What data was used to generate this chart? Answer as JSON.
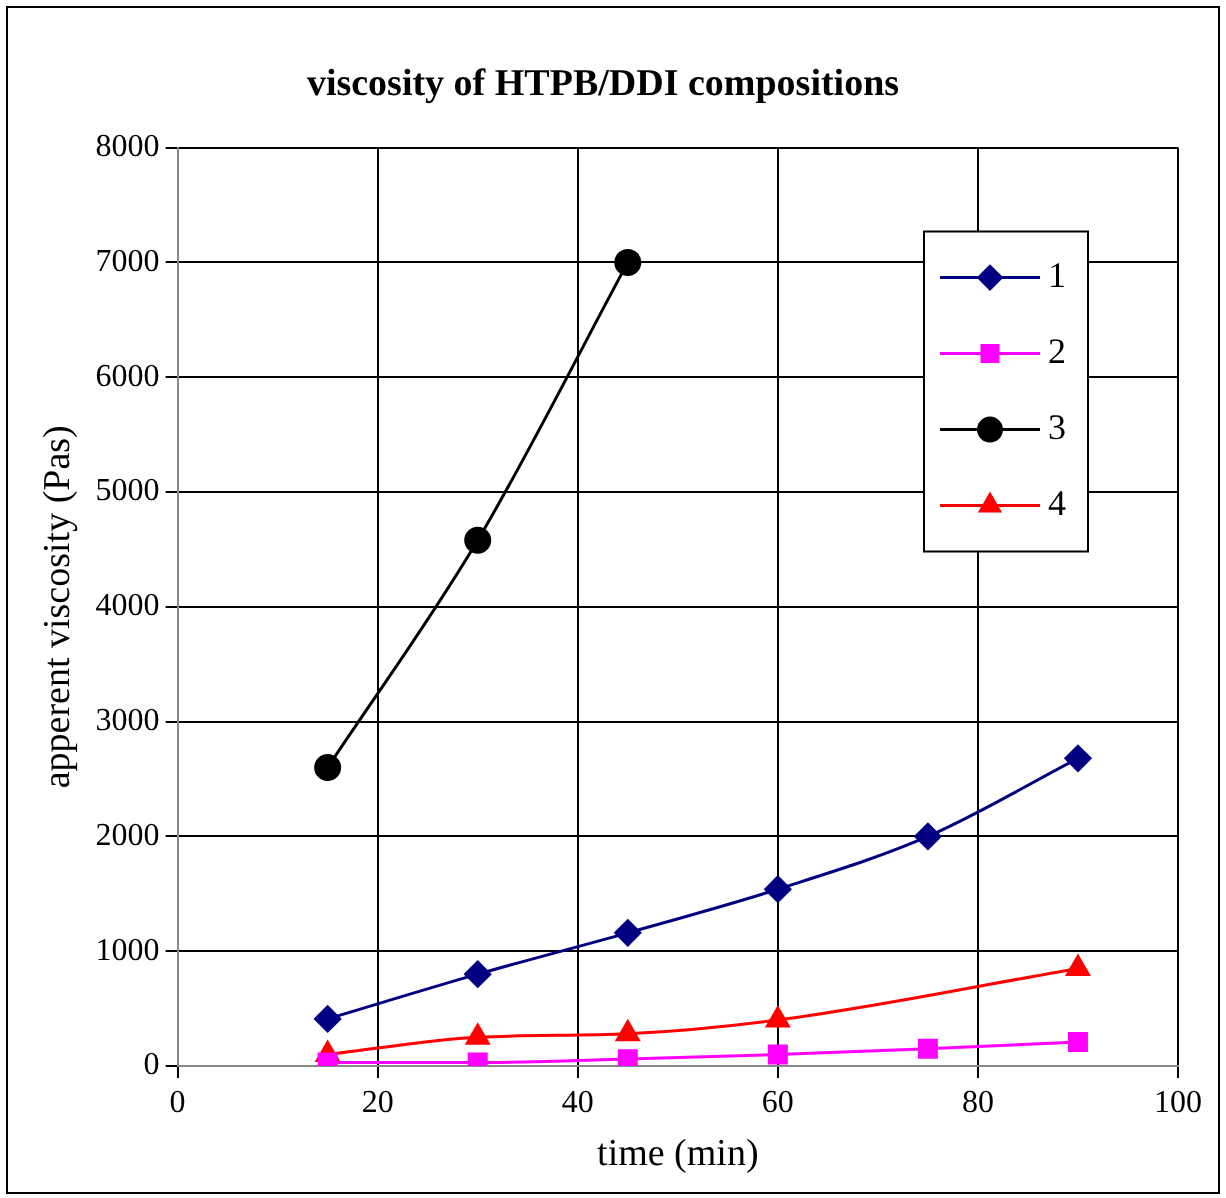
{
  "chart_data": {
    "type": "line",
    "title": "viscosity of HTPB/DDI compositions",
    "xlabel": "time (min)",
    "ylabel": "apperent viscosity (Pas)",
    "x": [
      15,
      30,
      45,
      60,
      75,
      90
    ],
    "series": [
      {
        "name": "1",
        "color": "#000080",
        "marker": "diamond",
        "values": [
          410,
          800,
          1160,
          1540,
          2000,
          2680
        ]
      },
      {
        "name": "2",
        "color": "#ff00ff",
        "marker": "square",
        "values": [
          30,
          30,
          60,
          100,
          150,
          210
        ]
      },
      {
        "name": "3",
        "color": "#000000",
        "marker": "circle",
        "values": [
          2600,
          4580,
          7000,
          null,
          null,
          null
        ]
      },
      {
        "name": "4",
        "color": "#ff0000",
        "marker": "triangle",
        "values": [
          100,
          250,
          280,
          400,
          null,
          850
        ]
      }
    ],
    "xlim": [
      0,
      100
    ],
    "xticks": [
      0,
      20,
      40,
      60,
      80,
      100
    ],
    "ylim": [
      0,
      8000
    ],
    "yticks": [
      0,
      1000,
      2000,
      3000,
      4000,
      5000,
      6000,
      7000,
      8000
    ],
    "grid": true,
    "legend": "top right"
  }
}
